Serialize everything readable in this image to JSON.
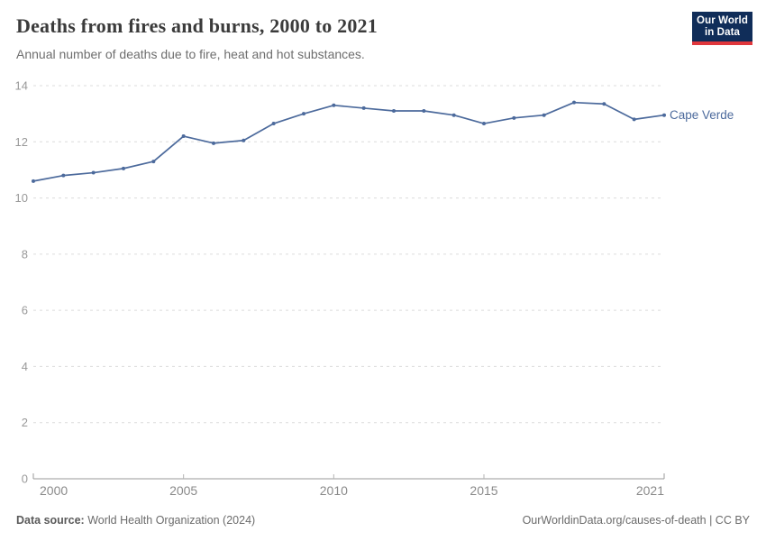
{
  "header": {
    "title": "Deaths from fires and burns, 2000 to 2021",
    "subtitle": "Annual number of deaths due to fire, heat and hot substances.",
    "logo": {
      "line1": "Our World",
      "line2": "in Data"
    }
  },
  "footer": {
    "source_label": "Data source:",
    "source_value": " World Health Organization (2024)",
    "attribution": "OurWorldinData.org/causes-of-death | CC BY"
  },
  "colors": {
    "line": "#4c6a9c",
    "grid": "#dcdcdc",
    "axis": "#999999",
    "tick_label": "#999999",
    "x_tick_label": "#8a8a8a",
    "tick_mark": "#b3b3b3",
    "title_text": "#3b3b3b",
    "subtitle_text": "#6e6e6e",
    "logo_bg": "#102d59",
    "logo_red": "#e0373c"
  },
  "chart_data": {
    "type": "line",
    "title": "Deaths from fires and burns, 2000 to 2021",
    "subtitle": "Annual number of deaths due to fire, heat and hot substances.",
    "xlabel": "",
    "ylabel": "",
    "x": [
      2000,
      2001,
      2002,
      2003,
      2004,
      2005,
      2006,
      2007,
      2008,
      2009,
      2010,
      2011,
      2012,
      2013,
      2014,
      2015,
      2016,
      2017,
      2018,
      2019,
      2020,
      2021
    ],
    "series": [
      {
        "name": "Cape Verde",
        "color": "#4c6a9c",
        "values": [
          10.6,
          10.8,
          10.9,
          11.05,
          11.3,
          12.2,
          11.95,
          12.05,
          12.65,
          13.0,
          13.3,
          13.2,
          13.1,
          13.1,
          12.95,
          12.65,
          12.85,
          12.95,
          13.4,
          13.35,
          12.8,
          12.95
        ]
      }
    ],
    "ylim": [
      0,
      14
    ],
    "yticks": [
      0,
      2,
      4,
      6,
      8,
      10,
      12,
      14
    ],
    "xticks": [
      2000,
      2005,
      2010,
      2015,
      2021
    ],
    "grid": "horizontal-dashed",
    "legend": "line-end-label"
  }
}
